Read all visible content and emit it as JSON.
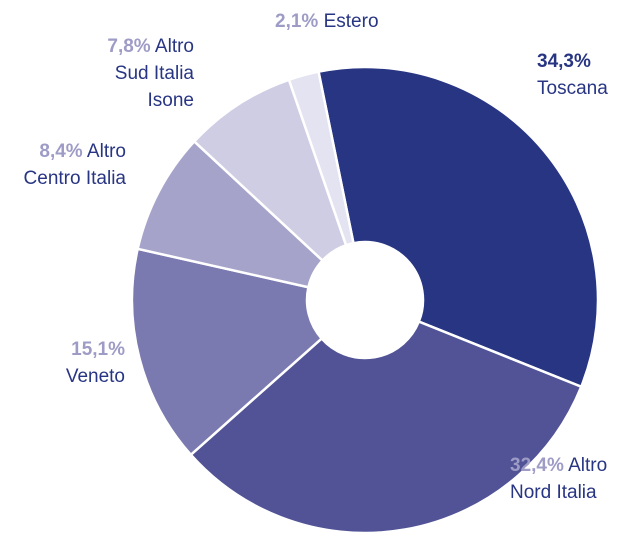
{
  "chart_data": {
    "type": "donut",
    "categories": [
      "Toscana",
      "Altro Nord Italia",
      "Veneto",
      "Altro Centro Italia",
      "Altro Sud Italia Isone",
      "Estero"
    ],
    "values": [
      34.3,
      32.4,
      15.1,
      8.4,
      7.8,
      2.1
    ],
    "value_labels": [
      "34,3%",
      "32,4%",
      "15,1%",
      "8,4%",
      "7,8%",
      "2,1%"
    ],
    "colors": [
      "#283583",
      "#515396",
      "#7a79b0",
      "#a5a3ca",
      "#cfcde4",
      "#e4e3f1"
    ]
  }
}
